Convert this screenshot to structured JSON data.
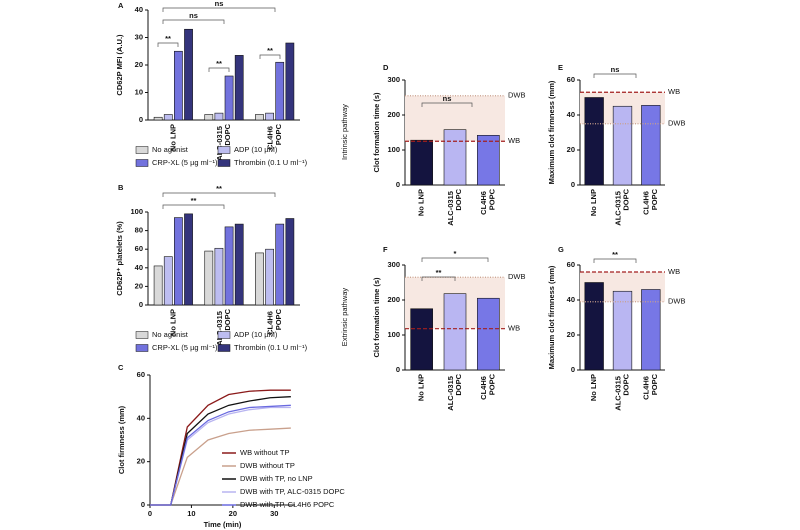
{
  "chart_data": [
    {
      "type": "bar",
      "panel": "A",
      "ylabel": "CD62P MFI (A.U.)",
      "categories": [
        "No LNP",
        "ALC-0315 DOPC",
        "CL4H6 POPC"
      ],
      "series": [
        {
          "name": "No agonist",
          "color": "#d9d9d9",
          "values": [
            1,
            2,
            2
          ]
        },
        {
          "name": "ADP (10 µM)",
          "color": "#bdbdf0",
          "values": [
            2,
            2.5,
            2.5
          ]
        },
        {
          "name": "CRP-XL (5 µg ml⁻¹)",
          "color": "#7272dd",
          "values": [
            25,
            16,
            21
          ]
        },
        {
          "name": "Thrombin (0.1 U ml⁻¹)",
          "color": "#34347c",
          "values": [
            33,
            23.5,
            28
          ]
        }
      ],
      "ylim": [
        0,
        40
      ],
      "yticks": [
        0,
        10,
        20,
        30,
        40
      ],
      "annotations": [
        "**",
        "**",
        "**",
        "ns",
        "ns"
      ]
    },
    {
      "type": "bar",
      "panel": "B",
      "ylabel": "CD62P⁺ platelets (%)",
      "categories": [
        "No LNP",
        "ALC-0315 DOPC",
        "CL4H6 POPC"
      ],
      "series": [
        {
          "name": "No agonist",
          "color": "#d9d9d9",
          "values": [
            42,
            58,
            56
          ]
        },
        {
          "name": "ADP (10 µM)",
          "color": "#bdbdf0",
          "values": [
            52,
            61,
            60
          ]
        },
        {
          "name": "CRP-XL (5 µg ml⁻¹)",
          "color": "#7272dd",
          "values": [
            94,
            84,
            87
          ]
        },
        {
          "name": "Thrombin (0.1 U ml⁻¹)",
          "color": "#34347c",
          "values": [
            98,
            87,
            93
          ]
        }
      ],
      "ylim": [
        0,
        100
      ],
      "yticks": [
        0,
        20,
        40,
        60,
        80,
        100
      ],
      "annotations": [
        "**",
        "**"
      ]
    },
    {
      "type": "line",
      "panel": "C",
      "ylabel": "Clot firmness (mm)",
      "xlabel": "Time (min)",
      "x": [
        0,
        5,
        9,
        14,
        19,
        24,
        29,
        34
      ],
      "series": [
        {
          "name": "WB without TP",
          "color": "#8b1a1a",
          "values": [
            0,
            0,
            36,
            46,
            51,
            52.5,
            53,
            53
          ]
        },
        {
          "name": "DWB without TP",
          "color": "#c9a08c",
          "values": [
            0,
            0,
            22,
            30,
            33,
            34.5,
            35,
            35.5
          ]
        },
        {
          "name": "DWB with TP, no LNP",
          "color": "#111111",
          "values": [
            0,
            0,
            33,
            42,
            46,
            48,
            49.5,
            50
          ]
        },
        {
          "name": "DWB with TP, ALC-0315 DOPC",
          "color": "#b8b4f0",
          "values": [
            0,
            0,
            30,
            38,
            42,
            44,
            45,
            45
          ]
        },
        {
          "name": "DWB with TP, CL4H6 POPC",
          "color": "#6a6ae0",
          "values": [
            0,
            0,
            31,
            39,
            43,
            45,
            45.5,
            46
          ]
        }
      ],
      "xlim": [
        0,
        35
      ],
      "xticks": [
        0,
        10,
        20,
        30
      ],
      "ylim": [
        0,
        60
      ],
      "yticks": [
        0,
        20,
        40,
        60
      ]
    },
    {
      "type": "bar",
      "panel": "D",
      "row_label": "Intrinsic pathway",
      "ylabel": "Clot formation time (s)",
      "categories": [
        "No LNP",
        "ALC-0315 DOPC",
        "CL4H6 POPC"
      ],
      "values": [
        128,
        158,
        142
      ],
      "colors": [
        "#14143f",
        "#b9b6f2",
        "#7777e6"
      ],
      "ylim": [
        0,
        300
      ],
      "yticks": [
        0,
        100,
        200,
        300
      ],
      "ref_lines": [
        {
          "label": "WB",
          "value": 125,
          "color": "#a31f1f",
          "style": "dashed"
        },
        {
          "label": "DWB",
          "value": 255,
          "color": "#c9a08c",
          "style": "dotted"
        }
      ],
      "annotations": [
        "ns"
      ]
    },
    {
      "type": "bar",
      "panel": "E",
      "ylabel": "Maximum clot firmness (mm)",
      "categories": [
        "No LNP",
        "ALC-0315 DOPC",
        "CL4H6 POPC"
      ],
      "values": [
        50,
        45,
        45.5
      ],
      "colors": [
        "#14143f",
        "#b9b6f2",
        "#7777e6"
      ],
      "ylim": [
        0,
        60
      ],
      "yticks": [
        0,
        20,
        40,
        60
      ],
      "ref_lines": [
        {
          "label": "WB",
          "value": 53,
          "color": "#a31f1f",
          "style": "dashed"
        },
        {
          "label": "DWB",
          "value": 35,
          "color": "#c9a08c",
          "style": "dotted"
        }
      ],
      "annotations": [
        "ns"
      ]
    },
    {
      "type": "bar",
      "panel": "F",
      "row_label": "Extrinsic pathway",
      "ylabel": "Clot formation time (s)",
      "categories": [
        "No LNP",
        "ALC-0315 DOPC",
        "CL4H6 POPC"
      ],
      "values": [
        175,
        218,
        205
      ],
      "colors": [
        "#14143f",
        "#b9b6f2",
        "#7777e6"
      ],
      "ylim": [
        0,
        300
      ],
      "yticks": [
        0,
        100,
        200,
        300
      ],
      "ref_lines": [
        {
          "label": "WB",
          "value": 118,
          "color": "#a31f1f",
          "style": "dashed"
        },
        {
          "label": "DWB",
          "value": 265,
          "color": "#c9a08c",
          "style": "dotted"
        }
      ],
      "annotations": [
        "**",
        "*"
      ]
    },
    {
      "type": "bar",
      "panel": "G",
      "ylabel": "Maximum clot firmness (mm)",
      "categories": [
        "No LNP",
        "ALC-0315 DOPC",
        "CL4H6 POPC"
      ],
      "values": [
        50,
        45,
        46
      ],
      "colors": [
        "#14143f",
        "#b9b6f2",
        "#7777e6"
      ],
      "ylim": [
        0,
        60
      ],
      "yticks": [
        0,
        20,
        40,
        60
      ],
      "ref_lines": [
        {
          "label": "WB",
          "value": 56,
          "color": "#a31f1f",
          "style": "dashed"
        },
        {
          "label": "DWB",
          "value": 39,
          "color": "#c9a08c",
          "style": "dotted"
        }
      ],
      "annotations": [
        "**"
      ]
    }
  ]
}
